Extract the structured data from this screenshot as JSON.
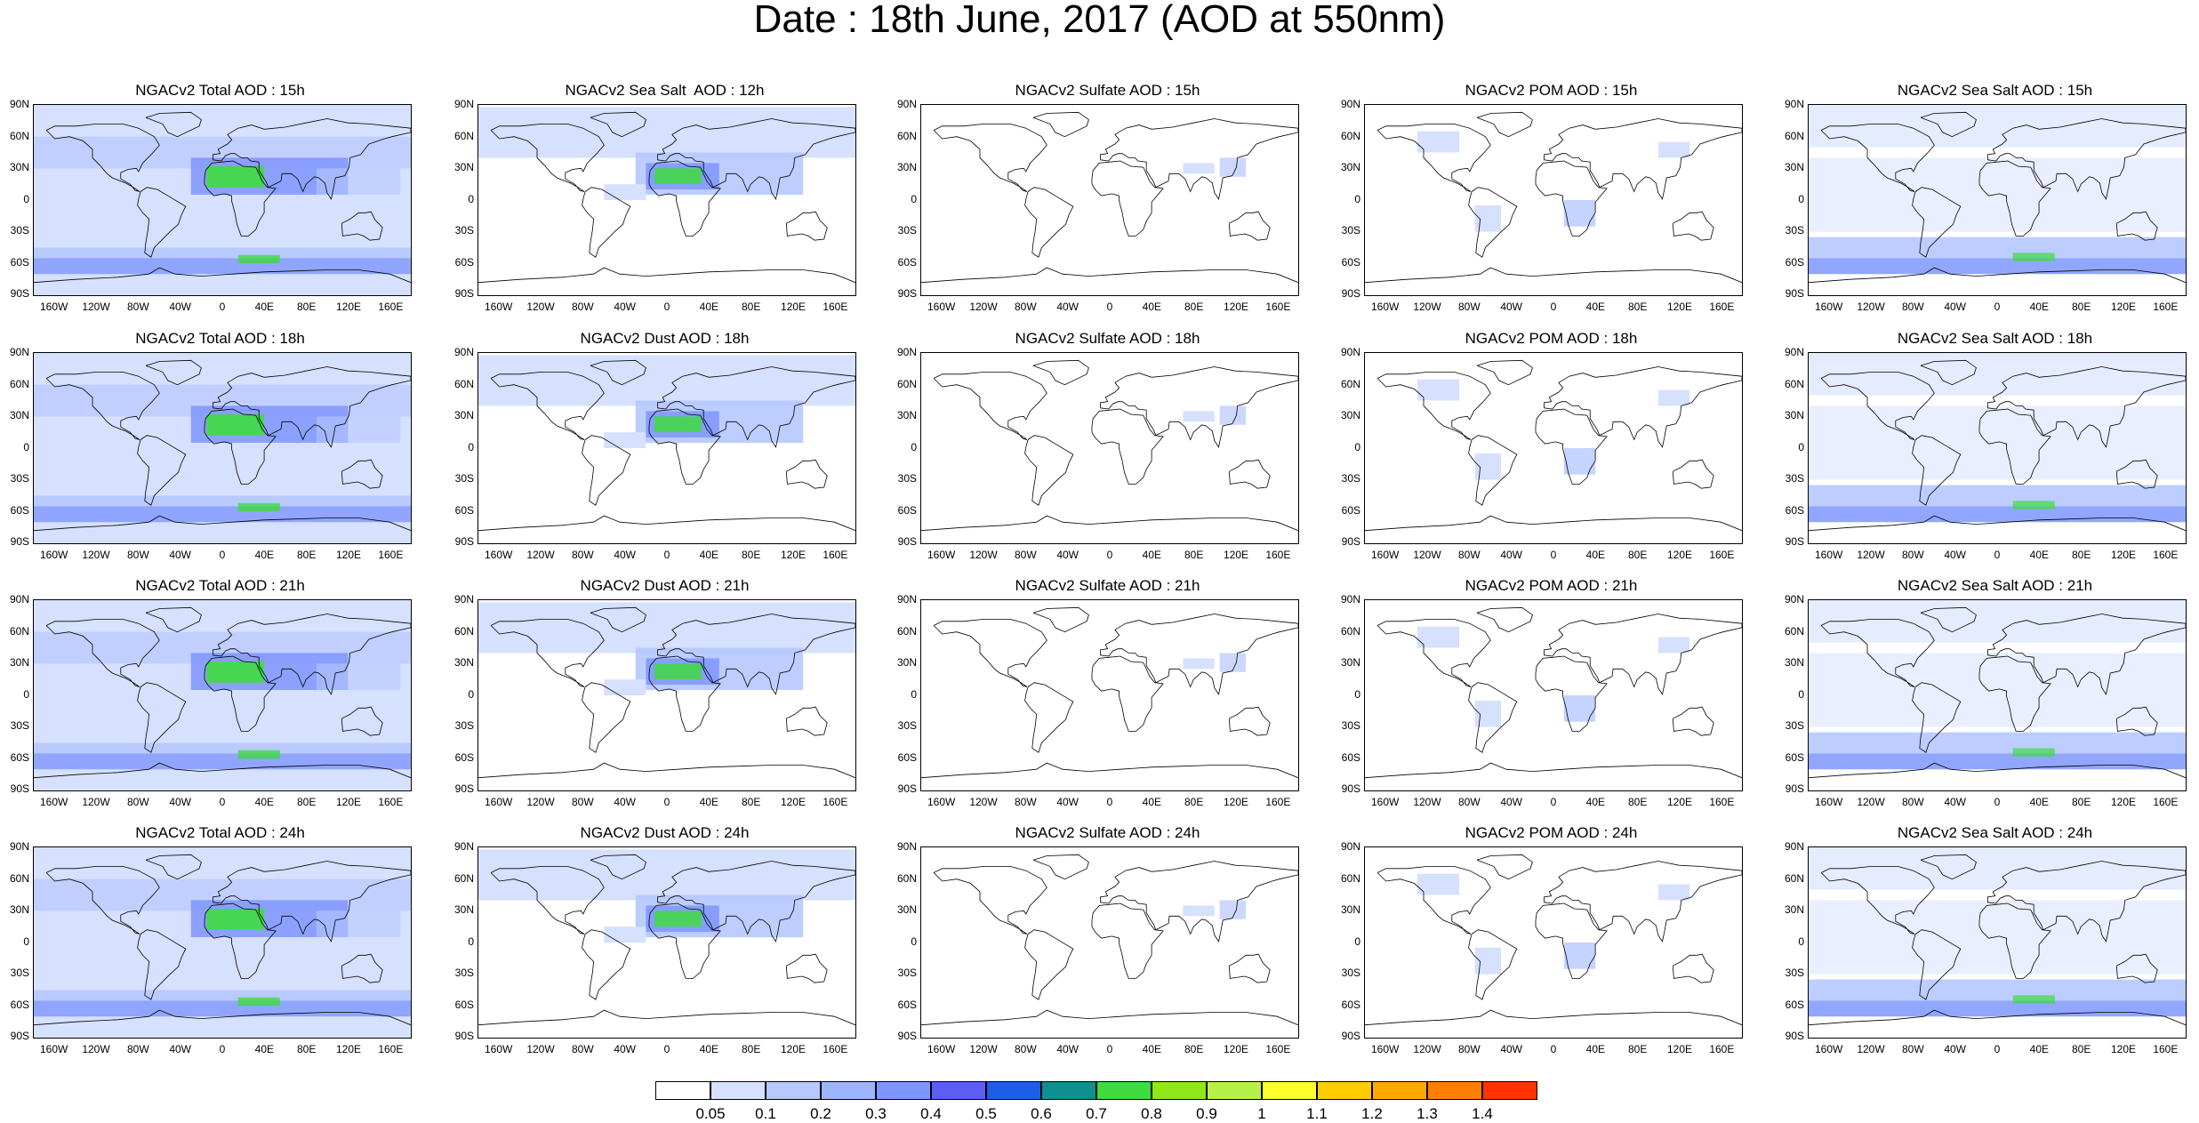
{
  "title": "Date : 18th June, 2017 (AOD at 550nm)",
  "lat_ticks": [
    "90N",
    "60N",
    "30N",
    "0",
    "30S",
    "60S",
    "90S"
  ],
  "lon_ticks": [
    "160W",
    "120W",
    "80W",
    "40W",
    "0",
    "40E",
    "80E",
    "120E",
    "160E"
  ],
  "panels": [
    [
      "NGACv2 Total AOD : 15h",
      "NGACv2 Sea Salt  AOD : 12h",
      "NGACv2 Sulfate AOD : 15h",
      "NGACv2 POM AOD : 15h",
      "NGACv2 Sea Salt AOD : 15h"
    ],
    [
      "NGACv2 Total AOD : 18h",
      "NGACv2 Dust AOD : 18h",
      "NGACv2 Sulfate AOD : 18h",
      "NGACv2 POM AOD : 18h",
      "NGACv2 Sea Salt AOD : 18h"
    ],
    [
      "NGACv2 Total AOD : 21h",
      "NGACv2 Dust AOD : 21h",
      "NGACv2 Sulfate AOD : 21h",
      "NGACv2 POM AOD : 21h",
      "NGACv2 Sea Salt AOD : 21h"
    ],
    [
      "NGACv2 Total AOD : 24h",
      "NGACv2 Dust AOD : 24h",
      "NGACv2 Sulfate AOD : 24h",
      "NGACv2 POM AOD : 24h",
      "NGACv2 Sea Salt AOD : 24h"
    ]
  ],
  "colorbar": {
    "labels": [
      "0.05",
      "0.1",
      "0.2",
      "0.3",
      "0.4",
      "0.5",
      "0.6",
      "0.7",
      "0.8",
      "0.9",
      "1",
      "1.1",
      "1.2",
      "1.3",
      "1.4"
    ],
    "colors": [
      "#ffffff",
      "#d6e0ff",
      "#b6c8ff",
      "#9db4ff",
      "#7f95ff",
      "#5a5ef2",
      "#1b5fe8",
      "#0f8f8f",
      "#3fdb3f",
      "#8fe81a",
      "#b6f04a",
      "#ffff2b",
      "#ffcc00",
      "#ffaa00",
      "#ff7f00",
      "#ff3300"
    ]
  },
  "colors": {
    "total_fill": "#b6c8ff",
    "total_light": "#d6e0ff",
    "total_dark": "#7f95ff",
    "dust_green": "#3fdb3f",
    "coast": "#000000"
  }
}
